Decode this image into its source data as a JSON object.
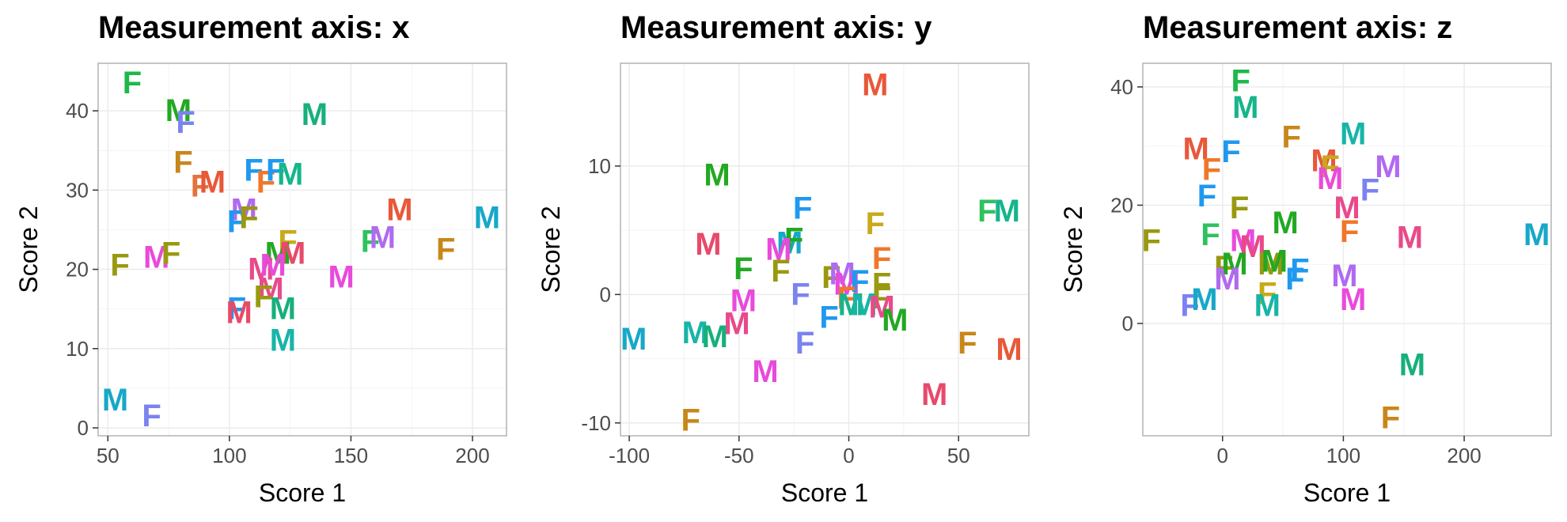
{
  "chart_data": [
    {
      "type": "scatter",
      "title": "Measurement axis: x",
      "xlabel": "Score 1",
      "ylabel": "Score 2",
      "xlim": [
        46,
        214
      ],
      "ylim": [
        -1,
        46
      ],
      "xticks": [
        50,
        100,
        150,
        200
      ],
      "yticks": [
        0,
        10,
        20,
        30,
        40
      ],
      "grid": true,
      "points": [
        {
          "x": 60,
          "y": 43.5,
          "label": "F",
          "color": "#1fb84a"
        },
        {
          "x": 79,
          "y": 40,
          "label": "M",
          "color": "#23a823"
        },
        {
          "x": 82,
          "y": 38.5,
          "label": "F",
          "color": "#7b83f0"
        },
        {
          "x": 135,
          "y": 39.5,
          "label": "M",
          "color": "#16b07d"
        },
        {
          "x": 81,
          "y": 33.5,
          "label": "F",
          "color": "#c8871a"
        },
        {
          "x": 88,
          "y": 30.5,
          "label": "F",
          "color": "#e3743a"
        },
        {
          "x": 93,
          "y": 31,
          "label": "M",
          "color": "#e8583a"
        },
        {
          "x": 110,
          "y": 32.5,
          "label": "F",
          "color": "#1f99f0"
        },
        {
          "x": 115,
          "y": 31,
          "label": "F",
          "color": "#f0772a"
        },
        {
          "x": 119,
          "y": 32.5,
          "label": "F",
          "color": "#1f99f0"
        },
        {
          "x": 125,
          "y": 32,
          "label": "M",
          "color": "#16b58b"
        },
        {
          "x": 106,
          "y": 27.5,
          "label": "M",
          "color": "#b06af0"
        },
        {
          "x": 103,
          "y": 26,
          "label": "F",
          "color": "#1f99f0"
        },
        {
          "x": 108,
          "y": 26.5,
          "label": "F",
          "color": "#99990f"
        },
        {
          "x": 170,
          "y": 27.5,
          "label": "M",
          "color": "#e8583a"
        },
        {
          "x": 206,
          "y": 26.5,
          "label": "M",
          "color": "#17a8c8"
        },
        {
          "x": 189,
          "y": 22.5,
          "label": "F",
          "color": "#c8871a"
        },
        {
          "x": 158,
          "y": 23.5,
          "label": "F",
          "color": "#2ec25f"
        },
        {
          "x": 163,
          "y": 24,
          "label": "M",
          "color": "#b06af0"
        },
        {
          "x": 124,
          "y": 23.5,
          "label": "F",
          "color": "#c8aa1a"
        },
        {
          "x": 120,
          "y": 22,
          "label": "M",
          "color": "#23a823"
        },
        {
          "x": 126,
          "y": 22,
          "label": "M",
          "color": "#e84a6a"
        },
        {
          "x": 70,
          "y": 21.5,
          "label": "M",
          "color": "#e84adb"
        },
        {
          "x": 76,
          "y": 22,
          "label": "F",
          "color": "#99990f"
        },
        {
          "x": 55,
          "y": 20.5,
          "label": "F",
          "color": "#99990f"
        },
        {
          "x": 113,
          "y": 20,
          "label": "M",
          "color": "#e84a8b"
        },
        {
          "x": 118,
          "y": 20.5,
          "label": "M",
          "color": "#e84adb"
        },
        {
          "x": 146,
          "y": 19,
          "label": "M",
          "color": "#e84adb"
        },
        {
          "x": 117,
          "y": 17.5,
          "label": "M",
          "color": "#e84a8b"
        },
        {
          "x": 114,
          "y": 16.5,
          "label": "F",
          "color": "#99990f"
        },
        {
          "x": 103,
          "y": 15,
          "label": "F",
          "color": "#1f99f0"
        },
        {
          "x": 104,
          "y": 14.5,
          "label": "M",
          "color": "#e84a6a"
        },
        {
          "x": 122,
          "y": 15,
          "label": "M",
          "color": "#16b07d"
        },
        {
          "x": 122,
          "y": 11,
          "label": "M",
          "color": "#17b5a8"
        },
        {
          "x": 53,
          "y": 3.5,
          "label": "M",
          "color": "#17a8c8"
        },
        {
          "x": 68,
          "y": 1.5,
          "label": "F",
          "color": "#7b83f0"
        }
      ]
    },
    {
      "type": "scatter",
      "title": "Measurement axis: y",
      "xlabel": "Score 1",
      "ylabel": "Score 2",
      "xlim": [
        -104,
        82
      ],
      "ylim": [
        -11,
        18
      ],
      "xticks": [
        -100,
        -50,
        0,
        50
      ],
      "yticks": [
        -10,
        0,
        10
      ],
      "grid": true,
      "points": [
        {
          "x": 12,
          "y": 16.3,
          "label": "M",
          "color": "#e8583a"
        },
        {
          "x": -60,
          "y": 9.3,
          "label": "M",
          "color": "#23a823"
        },
        {
          "x": -21,
          "y": 6.7,
          "label": "F",
          "color": "#1f99f0"
        },
        {
          "x": 63,
          "y": 6.5,
          "label": "F",
          "color": "#2ec25f"
        },
        {
          "x": 72,
          "y": 6.5,
          "label": "M",
          "color": "#16b58b"
        },
        {
          "x": 12,
          "y": 5.5,
          "label": "F",
          "color": "#c8aa1a"
        },
        {
          "x": -64,
          "y": 3.9,
          "label": "M",
          "color": "#e84a6a"
        },
        {
          "x": -27,
          "y": 4,
          "label": "M",
          "color": "#17a8c8"
        },
        {
          "x": -25,
          "y": 4.3,
          "label": "F",
          "color": "#23a823"
        },
        {
          "x": -32,
          "y": 3.5,
          "label": "M",
          "color": "#e84adb"
        },
        {
          "x": -48,
          "y": 2,
          "label": "F",
          "color": "#23a823"
        },
        {
          "x": -31,
          "y": 1.8,
          "label": "F",
          "color": "#99990f"
        },
        {
          "x": 15,
          "y": 2.8,
          "label": "F",
          "color": "#f0772a"
        },
        {
          "x": -8,
          "y": 1.3,
          "label": "F",
          "color": "#99990f"
        },
        {
          "x": -3,
          "y": 1.6,
          "label": "M",
          "color": "#b06af0"
        },
        {
          "x": -1,
          "y": 0.8,
          "label": "M",
          "color": "#e84adb"
        },
        {
          "x": 5,
          "y": 1,
          "label": "F",
          "color": "#1f99f0"
        },
        {
          "x": 15,
          "y": 0.8,
          "label": "F",
          "color": "#99990f"
        },
        {
          "x": 15,
          "y": -0.3,
          "label": "F",
          "color": "#99990f"
        },
        {
          "x": -22,
          "y": 0,
          "label": "F",
          "color": "#7b83f0"
        },
        {
          "x": -48,
          "y": -0.5,
          "label": "M",
          "color": "#e84adb"
        },
        {
          "x": -1,
          "y": -0.3,
          "label": "F",
          "color": "#f0772a"
        },
        {
          "x": 1,
          "y": -0.8,
          "label": "M",
          "color": "#16b58b"
        },
        {
          "x": 7,
          "y": -0.8,
          "label": "M",
          "color": "#17b5a8"
        },
        {
          "x": 15,
          "y": -1,
          "label": "M",
          "color": "#e84a8b"
        },
        {
          "x": 21,
          "y": -2,
          "label": "M",
          "color": "#23a823"
        },
        {
          "x": -9,
          "y": -1.8,
          "label": "F",
          "color": "#1f99f0"
        },
        {
          "x": -51,
          "y": -2.3,
          "label": "M",
          "color": "#e84a8b"
        },
        {
          "x": -98,
          "y": -3.5,
          "label": "M",
          "color": "#17a8c8"
        },
        {
          "x": -70,
          "y": -3,
          "label": "M",
          "color": "#17b5a8"
        },
        {
          "x": -61,
          "y": -3.3,
          "label": "M",
          "color": "#16b07d"
        },
        {
          "x": -20,
          "y": -3.8,
          "label": "F",
          "color": "#7b83f0"
        },
        {
          "x": 54,
          "y": -3.8,
          "label": "F",
          "color": "#c8871a"
        },
        {
          "x": 73,
          "y": -4.3,
          "label": "M",
          "color": "#e8583a"
        },
        {
          "x": -38,
          "y": -6,
          "label": "M",
          "color": "#e84adb"
        },
        {
          "x": 39,
          "y": -7.8,
          "label": "M",
          "color": "#e84a6a"
        },
        {
          "x": -72,
          "y": -9.8,
          "label": "F",
          "color": "#c8871a"
        }
      ]
    },
    {
      "type": "scatter",
      "title": "Measurement axis: z",
      "xlabel": "Score 1",
      "ylabel": "Score 2",
      "xlim": [
        -66,
        272
      ],
      "ylim": [
        -19,
        44
      ],
      "xticks": [
        0,
        100,
        200
      ],
      "yticks": [
        0,
        20,
        40
      ],
      "grid": true,
      "points": [
        {
          "x": 15,
          "y": 41,
          "label": "F",
          "color": "#1fb84a"
        },
        {
          "x": 19,
          "y": 36.5,
          "label": "M",
          "color": "#16b58b"
        },
        {
          "x": 108,
          "y": 32,
          "label": "M",
          "color": "#17b5a8"
        },
        {
          "x": -22,
          "y": 29.5,
          "label": "M",
          "color": "#e8583a"
        },
        {
          "x": 7,
          "y": 29,
          "label": "F",
          "color": "#1f99f0"
        },
        {
          "x": 57,
          "y": 31.5,
          "label": "F",
          "color": "#c8871a"
        },
        {
          "x": 84,
          "y": 27.5,
          "label": "M",
          "color": "#e8583a"
        },
        {
          "x": 89,
          "y": 26.5,
          "label": "F",
          "color": "#c8aa1a"
        },
        {
          "x": -9,
          "y": 26,
          "label": "F",
          "color": "#f0772a"
        },
        {
          "x": 89,
          "y": 24.5,
          "label": "M",
          "color": "#e84adb"
        },
        {
          "x": 137,
          "y": 26.5,
          "label": "M",
          "color": "#b06af0"
        },
        {
          "x": -13,
          "y": 21.5,
          "label": "F",
          "color": "#1f99f0"
        },
        {
          "x": 122,
          "y": 22.5,
          "label": "F",
          "color": "#7b83f0"
        },
        {
          "x": 14,
          "y": 19.5,
          "label": "F",
          "color": "#99990f"
        },
        {
          "x": 103,
          "y": 19.5,
          "label": "M",
          "color": "#e84a8b"
        },
        {
          "x": 52,
          "y": 17,
          "label": "M",
          "color": "#23a823"
        },
        {
          "x": 105,
          "y": 15.5,
          "label": "F",
          "color": "#f0772a"
        },
        {
          "x": -10,
          "y": 15,
          "label": "F",
          "color": "#2ec25f"
        },
        {
          "x": 155,
          "y": 14.5,
          "label": "M",
          "color": "#e84a8b"
        },
        {
          "x": 260,
          "y": 15,
          "label": "M",
          "color": "#17a8c8"
        },
        {
          "x": -59,
          "y": 14,
          "label": "F",
          "color": "#99990f"
        },
        {
          "x": 17,
          "y": 14,
          "label": "M",
          "color": "#e84adb"
        },
        {
          "x": 25,
          "y": 13,
          "label": "M",
          "color": "#e84a8b"
        },
        {
          "x": 1,
          "y": 9.5,
          "label": "F",
          "color": "#99990f"
        },
        {
          "x": 10,
          "y": 10,
          "label": "M",
          "color": "#23a823"
        },
        {
          "x": 40,
          "y": 10,
          "label": "M",
          "color": "#99990f"
        },
        {
          "x": 43,
          "y": 10.5,
          "label": "M",
          "color": "#23a823"
        },
        {
          "x": 64,
          "y": 9,
          "label": "F",
          "color": "#1f99f0"
        },
        {
          "x": 60,
          "y": 7.5,
          "label": "F",
          "color": "#1f99f0"
        },
        {
          "x": 101,
          "y": 8,
          "label": "M",
          "color": "#b06af0"
        },
        {
          "x": 4,
          "y": 7.5,
          "label": "M",
          "color": "#b06af0"
        },
        {
          "x": 37,
          "y": 5,
          "label": "F",
          "color": "#c8aa1a"
        },
        {
          "x": 37,
          "y": 3,
          "label": "M",
          "color": "#17b5a8"
        },
        {
          "x": 108,
          "y": 4,
          "label": "M",
          "color": "#e84adb"
        },
        {
          "x": -27,
          "y": 3,
          "label": "F",
          "color": "#7b83f0"
        },
        {
          "x": -15,
          "y": 4,
          "label": "M",
          "color": "#17a8c8"
        },
        {
          "x": 157,
          "y": -7,
          "label": "M",
          "color": "#16b07d"
        },
        {
          "x": 139,
          "y": -16,
          "label": "F",
          "color": "#c8871a"
        }
      ]
    }
  ]
}
